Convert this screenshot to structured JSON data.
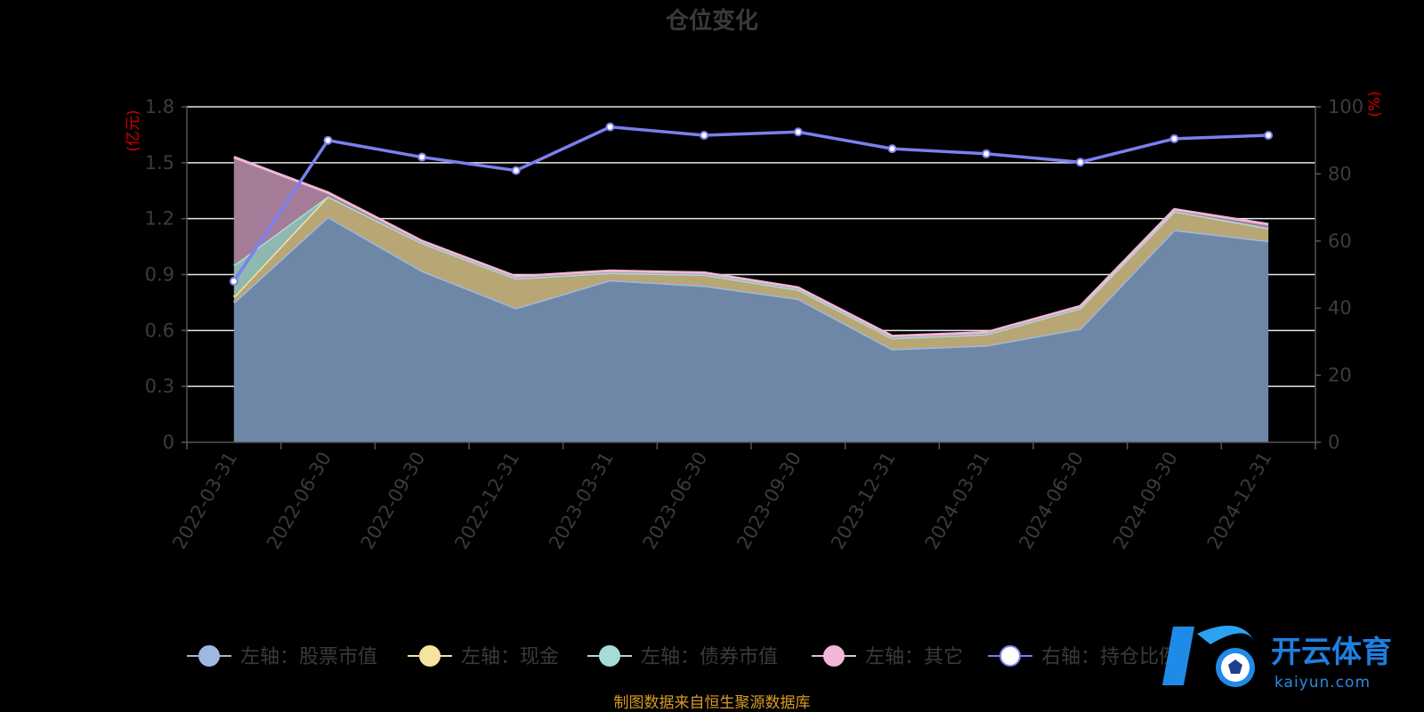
{
  "chart_data": {
    "type": "area",
    "title": "仓位变化",
    "x": [
      "2022-03-31",
      "2022-06-30",
      "2022-09-30",
      "2022-12-31",
      "2023-03-31",
      "2023-06-30",
      "2023-09-30",
      "2023-12-31",
      "2024-03-31",
      "2024-06-30",
      "2024-09-30",
      "2024-12-31"
    ],
    "left_axis": {
      "unit": "(亿元)",
      "range": [
        0,
        1.8
      ],
      "ticks": [
        "0",
        "0.3",
        "0.6",
        "0.9",
        "1.2",
        "1.5",
        "1.8"
      ]
    },
    "right_axis": {
      "unit": "(%)",
      "range": [
        0,
        100
      ],
      "ticks": [
        "0",
        "20",
        "40",
        "60",
        "80",
        "100"
      ]
    },
    "grid": true,
    "legend_position": "bottom",
    "series": [
      {
        "name": "左轴：股票市值",
        "axis": "left",
        "color": "#9fb8e0",
        "fill": "#6f87a6",
        "values": [
          0.75,
          1.21,
          0.92,
          0.72,
          0.87,
          0.84,
          0.77,
          0.5,
          0.52,
          0.61,
          1.14,
          1.08
        ]
      },
      {
        "name": "左轴：现金",
        "axis": "left",
        "color": "#f6e3a0",
        "fill": "#b8a675",
        "values": [
          0.03,
          0.11,
          0.15,
          0.16,
          0.04,
          0.06,
          0.05,
          0.06,
          0.06,
          0.11,
          0.1,
          0.07
        ]
      },
      {
        "name": "左轴：债券市值",
        "axis": "left",
        "color": "#a7dcd6",
        "fill": "#8fb8b0",
        "values": [
          0.17,
          0.0,
          0.0,
          0.0,
          0.0,
          0.0,
          0.0,
          0.0,
          0.0,
          0.0,
          0.0,
          0.0
        ]
      },
      {
        "name": "左轴：其它",
        "axis": "left",
        "color": "#f0b8d6",
        "fill": "#a57c98",
        "values": [
          0.58,
          0.02,
          0.01,
          0.01,
          0.01,
          0.01,
          0.01,
          0.01,
          0.01,
          0.01,
          0.01,
          0.02
        ]
      },
      {
        "name": "右轴：持仓比例",
        "axis": "right",
        "type": "line",
        "color": "#7b7ff0",
        "values": [
          48,
          90,
          85,
          81,
          94,
          91.5,
          92.5,
          87.5,
          86,
          83.5,
          90.5,
          91.5
        ]
      }
    ],
    "source_note": "制图数据来自恒生聚源数据库"
  },
  "watermark": {
    "brand": "开云体育",
    "domain": "kaiyun.com"
  }
}
